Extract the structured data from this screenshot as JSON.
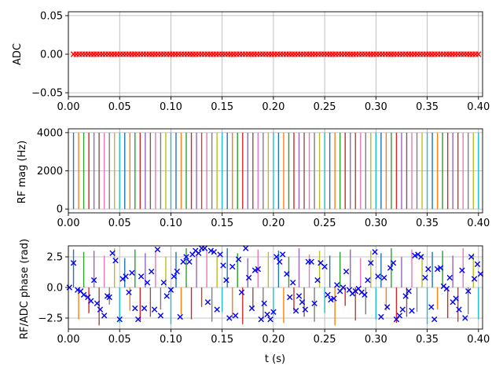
{
  "chart_data": [
    {
      "type": "scatter",
      "ylabel": "ADC",
      "xlim": [
        0,
        0.404
      ],
      "ylim": [
        -0.055,
        0.055
      ],
      "grid": true,
      "xticks": [
        "0.00",
        "0.05",
        "0.10",
        "0.15",
        "0.20",
        "0.25",
        "0.30",
        "0.35",
        "0.40"
      ],
      "yticks": [
        "0.05",
        "0.00",
        "−0.05"
      ],
      "ytick_values": [
        0.05,
        0.0,
        -0.05
      ],
      "series": [
        {
          "marker": "x",
          "color": "#ff0000",
          "x_start": 0.005,
          "x_end": 0.4,
          "n_points": 140,
          "y": 0.0
        }
      ]
    },
    {
      "type": "line",
      "ylabel": "RF mag (Hz)",
      "xlim": [
        0,
        0.404
      ],
      "ylim": [
        -200,
        4200
      ],
      "grid": true,
      "xticks": [
        "0.00",
        "0.05",
        "0.10",
        "0.15",
        "0.20",
        "0.25",
        "0.30",
        "0.35",
        "0.40"
      ],
      "yticks": [
        "4000",
        "2000",
        "0"
      ],
      "ytick_values": [
        4000,
        2000,
        0
      ],
      "pulse_height": 4000,
      "pulse_times": [
        0.005,
        0.01,
        0.015,
        0.02,
        0.025,
        0.03,
        0.035,
        0.04,
        0.045,
        0.05,
        0.055,
        0.06,
        0.065,
        0.07,
        0.075,
        0.08,
        0.085,
        0.09,
        0.095,
        0.1,
        0.105,
        0.11,
        0.115,
        0.12,
        0.125,
        0.13,
        0.135,
        0.14,
        0.145,
        0.15,
        0.155,
        0.16,
        0.165,
        0.17,
        0.175,
        0.18,
        0.185,
        0.19,
        0.195,
        0.2,
        0.205,
        0.21,
        0.215,
        0.22,
        0.225,
        0.23,
        0.235,
        0.24,
        0.245,
        0.25,
        0.255,
        0.26,
        0.265,
        0.27,
        0.275,
        0.28,
        0.285,
        0.29,
        0.295,
        0.3,
        0.305,
        0.31,
        0.315,
        0.32,
        0.325,
        0.33,
        0.335,
        0.34,
        0.345,
        0.35,
        0.355,
        0.36,
        0.365,
        0.37,
        0.375,
        0.38,
        0.385,
        0.39,
        0.395,
        0.4
      ],
      "colors": [
        "#1f77b4",
        "#ff7f0e",
        "#2ca02c",
        "#d62728",
        "#9467bd",
        "#8c564b",
        "#e377c2",
        "#7f7f7f",
        "#bcbd22",
        "#17becf"
      ]
    },
    {
      "type": "line",
      "ylabel": "RF/ADC phase (rad)",
      "xlabel": "t (s)",
      "xlim": [
        0,
        0.404
      ],
      "ylim": [
        -3.4,
        3.4
      ],
      "grid": true,
      "xticks": [
        "0.00",
        "0.05",
        "0.10",
        "0.15",
        "0.20",
        "0.25",
        "0.30",
        "0.35",
        "0.40"
      ],
      "yticks": [
        "2.5",
        "0.0",
        "−2.5"
      ],
      "ytick_values": [
        2.5,
        0.0,
        -2.5
      ],
      "rf_phase_lines": {
        "times": [
          0.005,
          0.01,
          0.015,
          0.02,
          0.025,
          0.03,
          0.035,
          0.04,
          0.045,
          0.05,
          0.055,
          0.06,
          0.065,
          0.07,
          0.075,
          0.08,
          0.085,
          0.09,
          0.095,
          0.1,
          0.105,
          0.11,
          0.115,
          0.12,
          0.125,
          0.13,
          0.135,
          0.14,
          0.145,
          0.15,
          0.155,
          0.16,
          0.165,
          0.17,
          0.175,
          0.18,
          0.185,
          0.19,
          0.195,
          0.2,
          0.205,
          0.21,
          0.215,
          0.22,
          0.225,
          0.23,
          0.235,
          0.24,
          0.245,
          0.25,
          0.255,
          0.26,
          0.265,
          0.27,
          0.275,
          0.28,
          0.285,
          0.29,
          0.295,
          0.3,
          0.305,
          0.31,
          0.315,
          0.32,
          0.325,
          0.33,
          0.335,
          0.34,
          0.345,
          0.35,
          0.355,
          0.36,
          0.365,
          0.37,
          0.375,
          0.38,
          0.385,
          0.39,
          0.395,
          0.4
        ],
        "phases": [
          3.1,
          -2.6,
          2.9,
          -2.1,
          3.0,
          -3.1,
          2.6,
          -1.4,
          3.2,
          -2.9,
          2.4,
          -1.9,
          3.1,
          -2.7,
          2.8,
          -2.4,
          3.0,
          -1.8,
          2.5,
          -3.0,
          2.9,
          -2.2,
          3.2,
          -2.6,
          2.7,
          -1.6,
          3.0,
          -2.8,
          2.6,
          -2.0,
          3.2,
          -2.5,
          2.8,
          -3.0,
          2.4,
          -1.7,
          3.1,
          -2.6,
          2.9,
          -2.3,
          3.0,
          -2.9,
          2.5,
          -1.9,
          3.2,
          -2.4,
          2.7,
          -2.8,
          3.0,
          -2.1,
          2.6,
          -3.1,
          2.9,
          -1.5,
          3.1,
          -2.7,
          2.4,
          -2.2,
          3.0,
          -2.6,
          2.8,
          -1.9,
          3.2,
          -2.9,
          2.5,
          -2.4,
          3.1,
          -2.0,
          2.7,
          -3.0,
          2.9,
          -1.8,
          3.0,
          -2.5,
          2.6,
          -2.8,
          3.2,
          -2.2,
          2.8,
          -2.6
        ]
      },
      "adc_phase_series": {
        "marker": "x",
        "color": "#0000ff",
        "x": [
          0.001,
          0.005,
          0.009,
          0.012,
          0.015,
          0.019,
          0.022,
          0.025,
          0.028,
          0.031,
          0.035,
          0.038,
          0.04,
          0.043,
          0.046,
          0.05,
          0.053,
          0.056,
          0.059,
          0.062,
          0.065,
          0.068,
          0.071,
          0.074,
          0.077,
          0.081,
          0.084,
          0.087,
          0.09,
          0.093,
          0.096,
          0.1,
          0.103,
          0.106,
          0.109,
          0.112,
          0.115,
          0.118,
          0.121,
          0.124,
          0.127,
          0.13,
          0.133,
          0.136,
          0.139,
          0.142,
          0.145,
          0.148,
          0.151,
          0.154,
          0.157,
          0.16,
          0.163,
          0.166,
          0.169,
          0.173,
          0.176,
          0.179,
          0.182,
          0.185,
          0.188,
          0.191,
          0.194,
          0.197,
          0.2,
          0.203,
          0.206,
          0.209,
          0.213,
          0.216,
          0.219,
          0.222,
          0.225,
          0.228,
          0.231,
          0.234,
          0.237,
          0.24,
          0.243,
          0.246,
          0.25,
          0.253,
          0.256,
          0.259,
          0.262,
          0.265,
          0.268,
          0.271,
          0.274,
          0.277,
          0.28,
          0.283,
          0.286,
          0.289,
          0.292,
          0.295,
          0.299,
          0.302,
          0.305,
          0.308,
          0.311,
          0.314,
          0.317,
          0.32,
          0.323,
          0.326,
          0.329,
          0.332,
          0.335,
          0.338,
          0.341,
          0.344,
          0.348,
          0.351,
          0.354,
          0.357,
          0.36,
          0.363,
          0.366,
          0.369,
          0.372,
          0.375,
          0.378,
          0.381,
          0.384,
          0.387,
          0.39,
          0.393,
          0.396,
          0.399,
          0.402
        ],
        "y": [
          0.0,
          2.0,
          -0.2,
          -0.3,
          -0.6,
          -0.8,
          -1.1,
          0.6,
          -1.3,
          -1.8,
          -2.3,
          -0.7,
          -0.8,
          2.8,
          2.2,
          -2.6,
          0.7,
          0.9,
          -0.4,
          1.2,
          -1.7,
          -2.6,
          0.9,
          -1.7,
          0.4,
          1.3,
          -1.8,
          3.1,
          -2.3,
          0.4,
          -0.7,
          -0.2,
          0.9,
          1.3,
          -2.4,
          2.1,
          2.5,
          2.1,
          2.7,
          3.0,
          2.8,
          3.2,
          3.2,
          -1.2,
          3.0,
          2.9,
          -1.8,
          2.7,
          1.8,
          0.6,
          -2.5,
          1.7,
          -2.3,
          2.3,
          -0.4,
          3.2,
          0.8,
          -1.7,
          1.4,
          1.5,
          -2.6,
          -1.3,
          -2.2,
          -2.6,
          -2.0,
          2.5,
          2.1,
          2.7,
          1.1,
          -0.8,
          0.4,
          -1.9,
          -0.7,
          -1.2,
          -1.8,
          2.1,
          2.1,
          -1.3,
          0.6,
          2.0,
          1.7,
          -0.6,
          -1.0,
          -0.9,
          0.2,
          -0.3,
          0.0,
          1.3,
          -0.2,
          -0.5,
          -0.3,
          -0.1,
          -0.4,
          -0.6,
          0.6,
          2.0,
          2.9,
          0.9,
          -2.4,
          0.8,
          -1.6,
          1.6,
          2.0,
          -2.6,
          -2.3,
          -1.8,
          -0.7,
          -0.3,
          -1.9,
          2.6,
          2.7,
          2.5,
          0.8,
          1.5,
          -1.6,
          -2.6,
          1.5,
          1.6,
          0.1,
          -0.1,
          0.8,
          -1.2,
          -0.9,
          -1.8,
          1.4,
          -2.5,
          -0.3,
          2.5,
          0.7,
          1.9,
          1.1
        ]
      }
    }
  ]
}
